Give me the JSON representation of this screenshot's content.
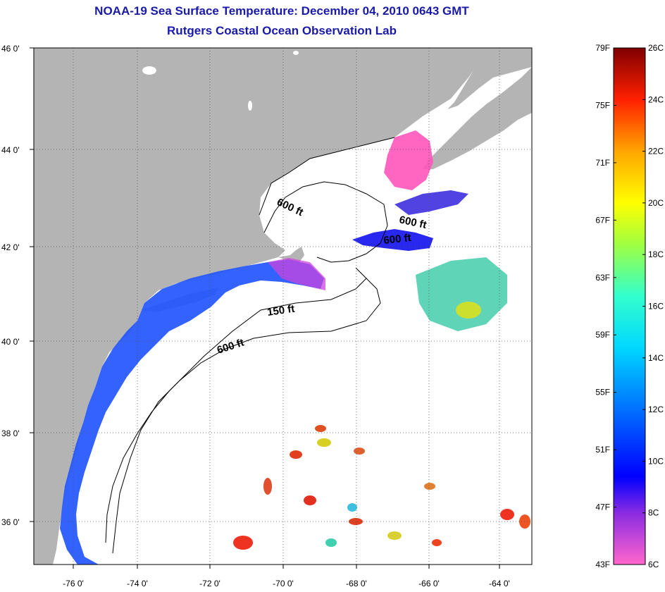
{
  "header": {
    "title": "NOAA-19 Sea Surface Temperature:  December 04, 2010 0643 GMT",
    "subtitle": "Rutgers Coastal Ocean Observation Lab"
  },
  "map": {
    "lat_labels": [
      "46 0'",
      "44 0'",
      "42 0'",
      "40 0'",
      "38 0'",
      "36 0'"
    ],
    "lon_labels": [
      "-76 0'",
      "-74 0'",
      "-72 0'",
      "-70 0'",
      "-68 0'",
      "-66 0'",
      "-64 0'"
    ],
    "lat_range": [
      35,
      46
    ],
    "lon_range": [
      -77,
      -63
    ],
    "contour_labels": [
      "600 ft",
      "600 ft",
      "600 ft",
      "150 ft",
      "600 ft"
    ],
    "colors": {
      "land": "#b4b4b4",
      "water": "#ffffff"
    }
  },
  "colorbar": {
    "fahrenheit_labels": [
      "79F",
      "75F",
      "71F",
      "67F",
      "63F",
      "59F",
      "55F",
      "51F",
      "47F",
      "43F"
    ],
    "celsius_labels": [
      "26C",
      "24C",
      "22C",
      "20C",
      "18C",
      "16C",
      "14C",
      "12C",
      "10C",
      "8C",
      "6C"
    ],
    "range_c": [
      6,
      26
    ]
  }
}
